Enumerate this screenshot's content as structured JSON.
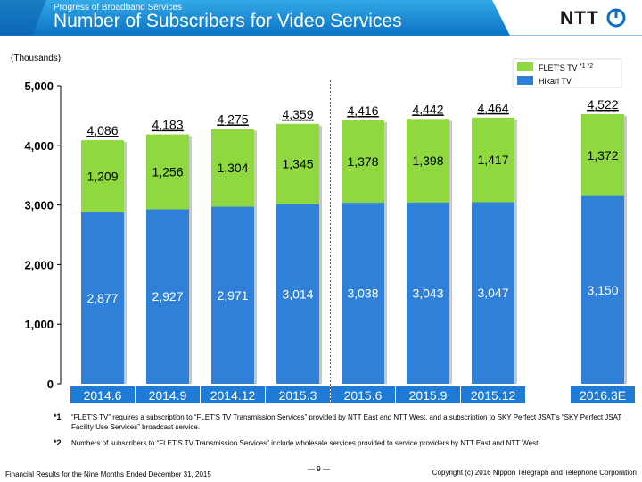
{
  "header": {
    "subtitle": "Progress of Broadband  Services",
    "title": "Number of Subscribers for Video Services"
  },
  "logo": {
    "text": "NTT"
  },
  "unit_label": "(Thousands)",
  "chart_data": {
    "type": "bar",
    "stacked": true,
    "categories": [
      "2014.6",
      "2014.9",
      "2014.12",
      "2015.3",
      "2015.6",
      "2015.9",
      "2015.12",
      "2016.3E"
    ],
    "series": [
      {
        "name": "Hikari TV",
        "color": "#2f80d8",
        "values": [
          2877,
          2927,
          2971,
          3014,
          3038,
          3043,
          3047,
          3150
        ],
        "labels": [
          "2,877",
          "2,927",
          "2,971",
          "3,014",
          "3,038",
          "3,043",
          "3,047",
          "3,150"
        ]
      },
      {
        "name": "FLET'S TV",
        "color": "#8fd83f",
        "values": [
          1209,
          1256,
          1304,
          1345,
          1378,
          1398,
          1417,
          1372
        ],
        "labels": [
          "1,209",
          "1,256",
          "1,304",
          "1,345",
          "1,378",
          "1,398",
          "1,417",
          "1,372"
        ]
      }
    ],
    "totals": [
      4086,
      4183,
      4275,
      4359,
      4416,
      4442,
      4464,
      4522
    ],
    "total_labels": [
      "4,086",
      "4,183",
      "4,275",
      "4,359",
      "4,416",
      "4,442",
      "4,464",
      "4,522"
    ],
    "ylim": [
      0,
      5000
    ],
    "yticks": [
      0,
      1000,
      2000,
      3000,
      4000,
      5000
    ],
    "ytick_labels": [
      "0",
      "1,000",
      "2,000",
      "3,000",
      "4,000",
      "5,000"
    ],
    "legend_position": "top-right",
    "legend_marks": [
      "*1",
      "*2"
    ],
    "grid": false,
    "divider_after_category": "2015.3"
  },
  "notes": [
    {
      "mark": "*1",
      "text": "“FLET'S TV” requires a subscription to “FLET'S TV Transmission Services” provided by NTT East and NTT West, and a subscription to SKY Perfect JSAT's “SKY Perfect JSAT Facility Use Services” broadcast service."
    },
    {
      "mark": "*2",
      "text": "Numbers of subscribers to “FLET'S TV Transmission Services” include wholesale services provided to service providers by NTT East and NTT West."
    }
  ],
  "footer": {
    "left": "Financial Results for the Nine Months Ended December 31, 2015",
    "page": "— 9 —",
    "right": "Copyright (c) 2016  Nippon Telegraph and Telephone Corporation"
  }
}
